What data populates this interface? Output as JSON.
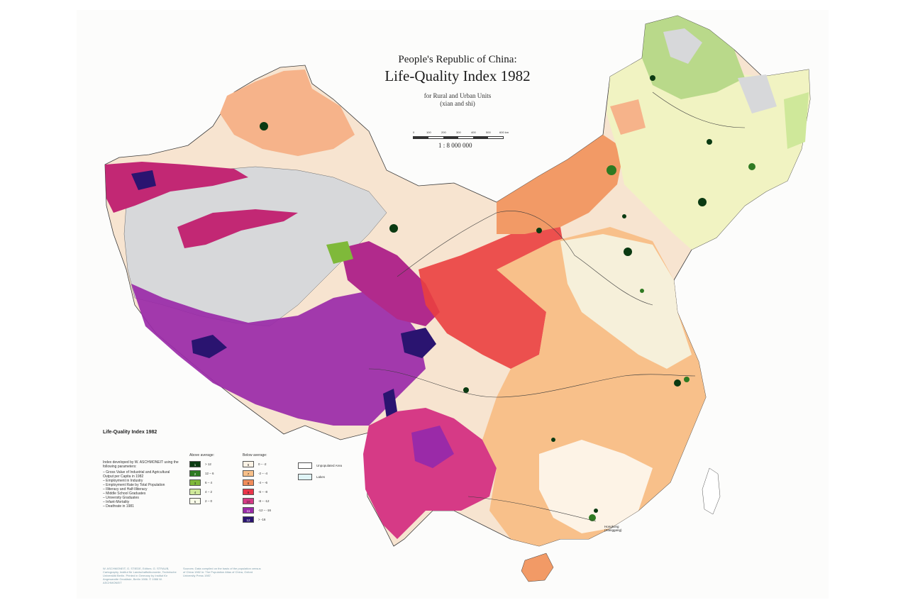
{
  "title": {
    "line1": "People's Republic of China:",
    "line2": "Life-Quality Index 1982",
    "line3": "for Rural and Urban Units",
    "line4": "(xian and shi)"
  },
  "scale": {
    "ticks": [
      "0",
      "100",
      "200",
      "300",
      "400",
      "500",
      "600 km"
    ],
    "ratio": "1 : 8 000 000"
  },
  "legend": {
    "title": "Life-Quality Index 1982",
    "intro": "Index developed by W. ASCHMONEIT using the following parameters:",
    "parameters": [
      "– Gross Value of Industrial and Agricultural Output per Capita in 1982",
      "– Employment in Industry",
      "– Employment Rate by Total Population",
      "– Illiteracy and Half-Illiteracy",
      "– Middle School Graduates",
      "– University Graduates",
      "– Infant-Mortality",
      "– Deathrate in 1981"
    ],
    "above_heading": "Above average:",
    "below_heading": "Below average:",
    "above": [
      {
        "code": "1",
        "range": "> 12",
        "color": "#0b3a12"
      },
      {
        "code": "2",
        "range": "12 – 6",
        "color": "#2f7a22"
      },
      {
        "code": "3",
        "range": "6 – 4",
        "color": "#7fb93a"
      },
      {
        "code": "4",
        "range": "4 – 2",
        "color": "#cfe89a"
      },
      {
        "code": "5",
        "range": "2 – 0",
        "color": "#f8fbe8"
      }
    ],
    "below": [
      {
        "code": "6",
        "range": "0 – -2",
        "color": "#fdf3e6"
      },
      {
        "code": "7",
        "range": "-2 – -4",
        "color": "#f8c08a"
      },
      {
        "code": "8",
        "range": "-4 – -6",
        "color": "#f08c5a"
      },
      {
        "code": "9",
        "range": "-6 – -8",
        "color": "#e9354a"
      },
      {
        "code": "10",
        "range": "-8 – -12",
        "color": "#d63a86"
      },
      {
        "code": "11",
        "range": "-12 – -16",
        "color": "#9a2aa8"
      },
      {
        "code": "12",
        "range": "> -16",
        "color": "#2a1470"
      }
    ],
    "unpopulated": {
      "label": "Unpopulated Area",
      "color": "#ffffff"
    },
    "lakes": {
      "label": "Lakes",
      "color": "#dff4f6"
    }
  },
  "credits": "W. ASCHMONEIT, G. STIEDE, Editors. G. STRAUB, Cartography, Institut für Landschaftsökonomie, Technische Universität Berlin. Printed in Germany by Institut für Angewandte Geodäsie, Berlin 1986. © 1986 W. ASCHMONEIT",
  "sources": "Sources: Data compiled on the basis of the population census of China 1982 in: The Population Atlas of China, Oxford University Press 1987.",
  "places": {
    "hongkong": "Hongkong",
    "xianggang": "(Xianggang)"
  },
  "colors": {
    "unpopulated_grey": "#d7d8da",
    "border": "#3b3b3b"
  }
}
